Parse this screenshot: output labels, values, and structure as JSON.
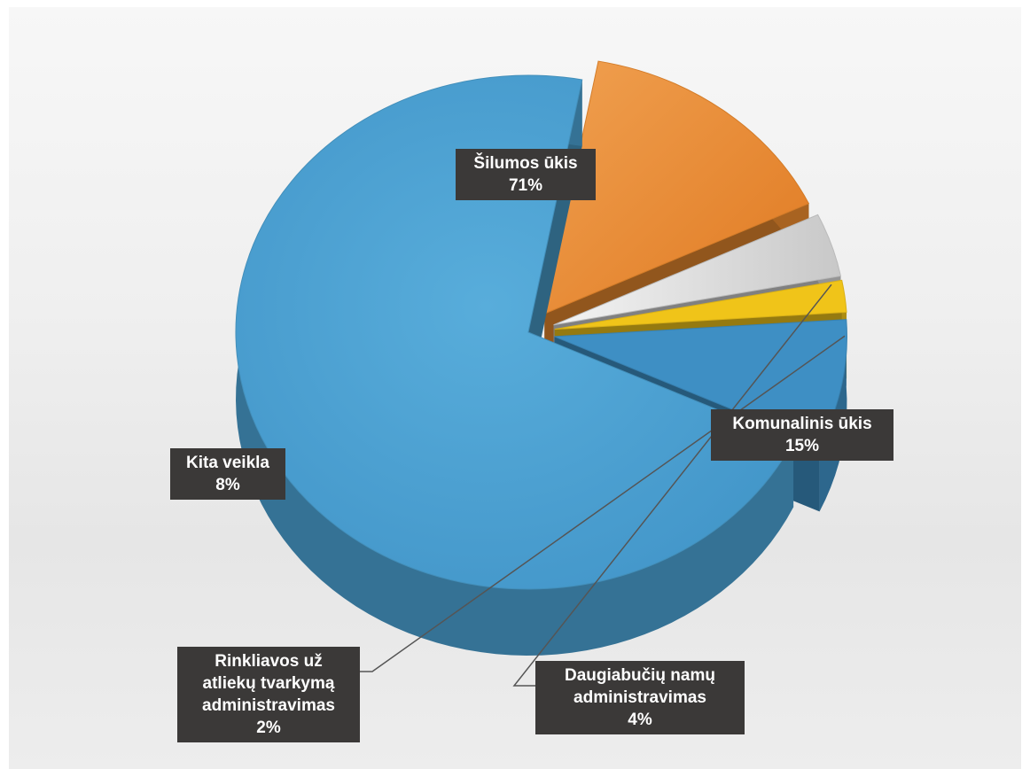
{
  "chart_data": {
    "type": "pie",
    "style": "3d-exploded",
    "title": "",
    "legend": "none",
    "slices": [
      {
        "name": "Šilumos ūkis",
        "value": 71,
        "value_label": "71%",
        "color": "#4a9fcf"
      },
      {
        "name": "Komunalinis ūkis",
        "value": 15,
        "value_label": "15%",
        "color": "#ea8a2e"
      },
      {
        "name": "Daugiabučių namų administravimas",
        "value": 4,
        "value_label": "4%",
        "color": "#cfcfcf"
      },
      {
        "name": "Rinkliavos už atliekų tvarkymą administravimas",
        "value": 2,
        "value_label": "2%",
        "color": "#f0c419"
      },
      {
        "name": "Kita veikla",
        "value": 8,
        "value_label": "8%",
        "color": "#3e8fc4"
      }
    ]
  },
  "labels": {
    "silumos": {
      "line1": "Šilumos ūkis",
      "pct": "71%"
    },
    "komunalinis": {
      "line1": "Komunalinis ūkis",
      "pct": "15%"
    },
    "daugiabuciu": {
      "line1": "Daugiabučių namų",
      "line2": "administravimas",
      "pct": "4%"
    },
    "rinkliavos": {
      "line1": "Rinkliavos už",
      "line2": "atliekų tvarkymą",
      "line3": "administravimas",
      "pct": "2%"
    },
    "kita": {
      "line1": "Kita veikla",
      "pct": "8%"
    }
  }
}
